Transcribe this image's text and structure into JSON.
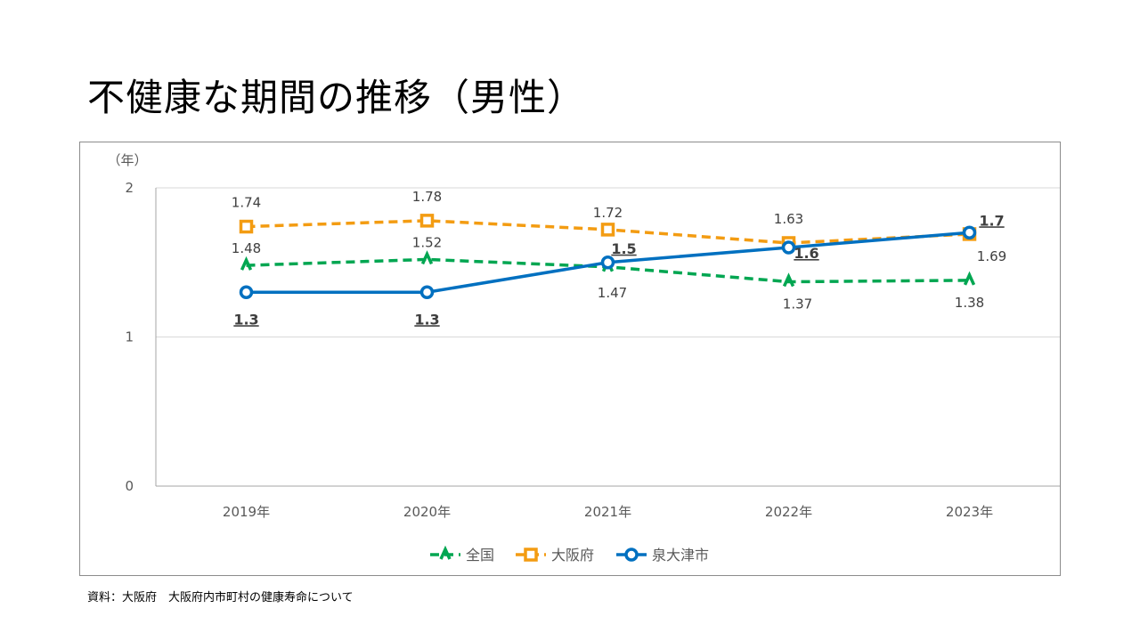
{
  "page": {
    "title": "不健康な期間の推移（男性）",
    "source": "資料：大阪府　大阪府内市町村の健康寿命について"
  },
  "chart_data": {
    "type": "line",
    "title": "不健康な期間の推移（男性）",
    "xlabel": "",
    "ylabel": "（年）",
    "categories": [
      "2019年",
      "2020年",
      "2021年",
      "2022年",
      "2023年"
    ],
    "ylim": [
      0,
      2
    ],
    "yticks": [
      "0",
      "1",
      "2"
    ],
    "grid": true,
    "legend_position": "bottom",
    "series": [
      {
        "name": "全国",
        "values": [
          1.48,
          1.52,
          1.47,
          1.37,
          1.38
        ],
        "labels": [
          "1.48",
          "1.52",
          "1.47",
          "1.37",
          "1.38"
        ],
        "color": "#00a651",
        "style": "dashed",
        "marker": "triangle"
      },
      {
        "name": "大阪府",
        "values": [
          1.74,
          1.78,
          1.72,
          1.63,
          1.69
        ],
        "labels": [
          "1.74",
          "1.78",
          "1.72",
          "1.63",
          "1.69"
        ],
        "color": "#f39c12",
        "style": "dashed",
        "marker": "square"
      },
      {
        "name": "泉大津市",
        "values": [
          1.3,
          1.3,
          1.5,
          1.6,
          1.7
        ],
        "labels": [
          "1.3",
          "1.3",
          "1.5",
          "1.6",
          "1.7"
        ],
        "color": "#0070c0",
        "style": "solid",
        "marker": "circle"
      }
    ]
  }
}
